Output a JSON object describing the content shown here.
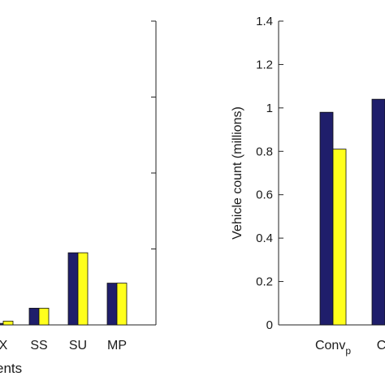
{
  "chart_data": [
    {
      "type": "bar",
      "title": "",
      "xlabel_visible_fragment": "ents",
      "ylabel": "",
      "categories": [
        "X",
        "SS",
        "SU",
        "MP"
      ],
      "series": [
        {
          "values": [
            0.02,
            0.22,
            0.95,
            0.55
          ]
        },
        {
          "values": [
            0.05,
            0.22,
            0.95,
            0.55
          ]
        }
      ],
      "ylim": [
        0,
        4
      ],
      "yticks": [
        0,
        1,
        2,
        3,
        4
      ],
      "ytick_labels_visible": false,
      "colors": [
        "#1f1e6b",
        "#ffff1c"
      ],
      "grid": false,
      "cropped_left": true
    },
    {
      "type": "bar",
      "title": "",
      "xlabel": "",
      "ylabel": "Vehicle count (millions)",
      "categories": [
        {
          "base": "Conv",
          "sub": "p"
        },
        {
          "base": "Co",
          "sub": ""
        }
      ],
      "series": [
        {
          "values": [
            0.98,
            1.04
          ]
        },
        {
          "values": [
            0.81,
            null
          ]
        }
      ],
      "ylim": [
        0,
        1.4
      ],
      "yticks": [
        0,
        0.2,
        0.4,
        0.6,
        0.8,
        1,
        1.2,
        1.4
      ],
      "ytick_labels": [
        "0",
        "0.2",
        "0.4",
        "0.6",
        "0.8",
        "1",
        "1.2",
        "1.4"
      ],
      "colors": [
        "#1f1e6b",
        "#ffff1c"
      ],
      "grid": false,
      "cropped_right": true
    }
  ]
}
